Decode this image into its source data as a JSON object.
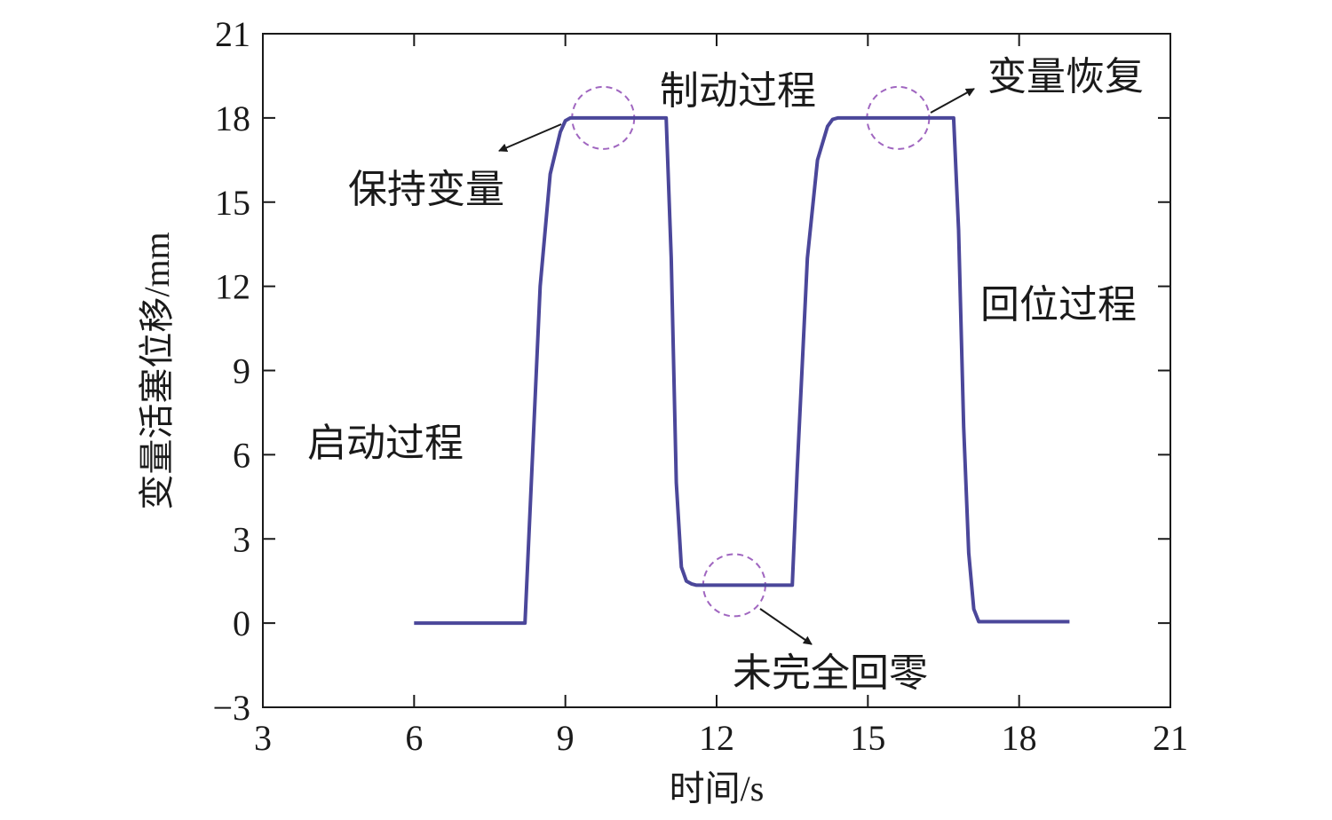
{
  "chart_data": {
    "type": "line",
    "title": "",
    "xlabel": "时间/s",
    "ylabel": "变量活塞位移/mm",
    "xlim": [
      3,
      21
    ],
    "ylim": [
      -3,
      21
    ],
    "xticks": [
      3,
      6,
      9,
      12,
      15,
      18,
      21
    ],
    "yticks": [
      -3,
      0,
      3,
      6,
      9,
      12,
      15,
      18,
      21
    ],
    "xtick_labels": [
      "3",
      "6",
      "9",
      "12",
      "15",
      "18",
      "21"
    ],
    "ytick_labels": [
      "−3",
      "0",
      "3",
      "6",
      "9",
      "12",
      "15",
      "18",
      "21"
    ],
    "grid": false,
    "line_color": "#4b479a",
    "marker_color": "#a066c0",
    "series": [
      {
        "x": [
          6.0,
          8.2,
          8.3,
          8.5,
          8.7,
          8.9,
          9.0,
          9.1,
          11.0,
          11.1,
          11.2,
          11.3,
          11.4,
          11.5,
          11.6,
          13.5,
          13.6,
          13.8,
          14.0,
          14.2,
          14.3,
          14.4,
          16.7,
          16.8,
          16.9,
          17.0,
          17.1,
          17.2,
          19.0
        ],
        "y": [
          0,
          0,
          4.0,
          12.0,
          16.0,
          17.5,
          17.9,
          18,
          18,
          13.0,
          5.0,
          2.0,
          1.5,
          1.4,
          1.35,
          1.35,
          5.5,
          13.0,
          16.5,
          17.7,
          17.95,
          18,
          18,
          14.0,
          7.0,
          2.5,
          0.5,
          0.05,
          0.05
        ]
      }
    ],
    "annotations": [
      {
        "text": "制动过程"
      },
      {
        "text": "变量恢复"
      },
      {
        "text": "保持变量"
      },
      {
        "text": "回位过程"
      },
      {
        "text": "启动过程"
      },
      {
        "text": "未完全回零"
      }
    ],
    "markers": [
      {
        "label": "保持变量",
        "x": 9.75,
        "y": 18
      },
      {
        "label": "变量恢复",
        "x": 15.6,
        "y": 18
      },
      {
        "label": "未完全回零",
        "x": 12.35,
        "y": 1.35
      }
    ]
  }
}
